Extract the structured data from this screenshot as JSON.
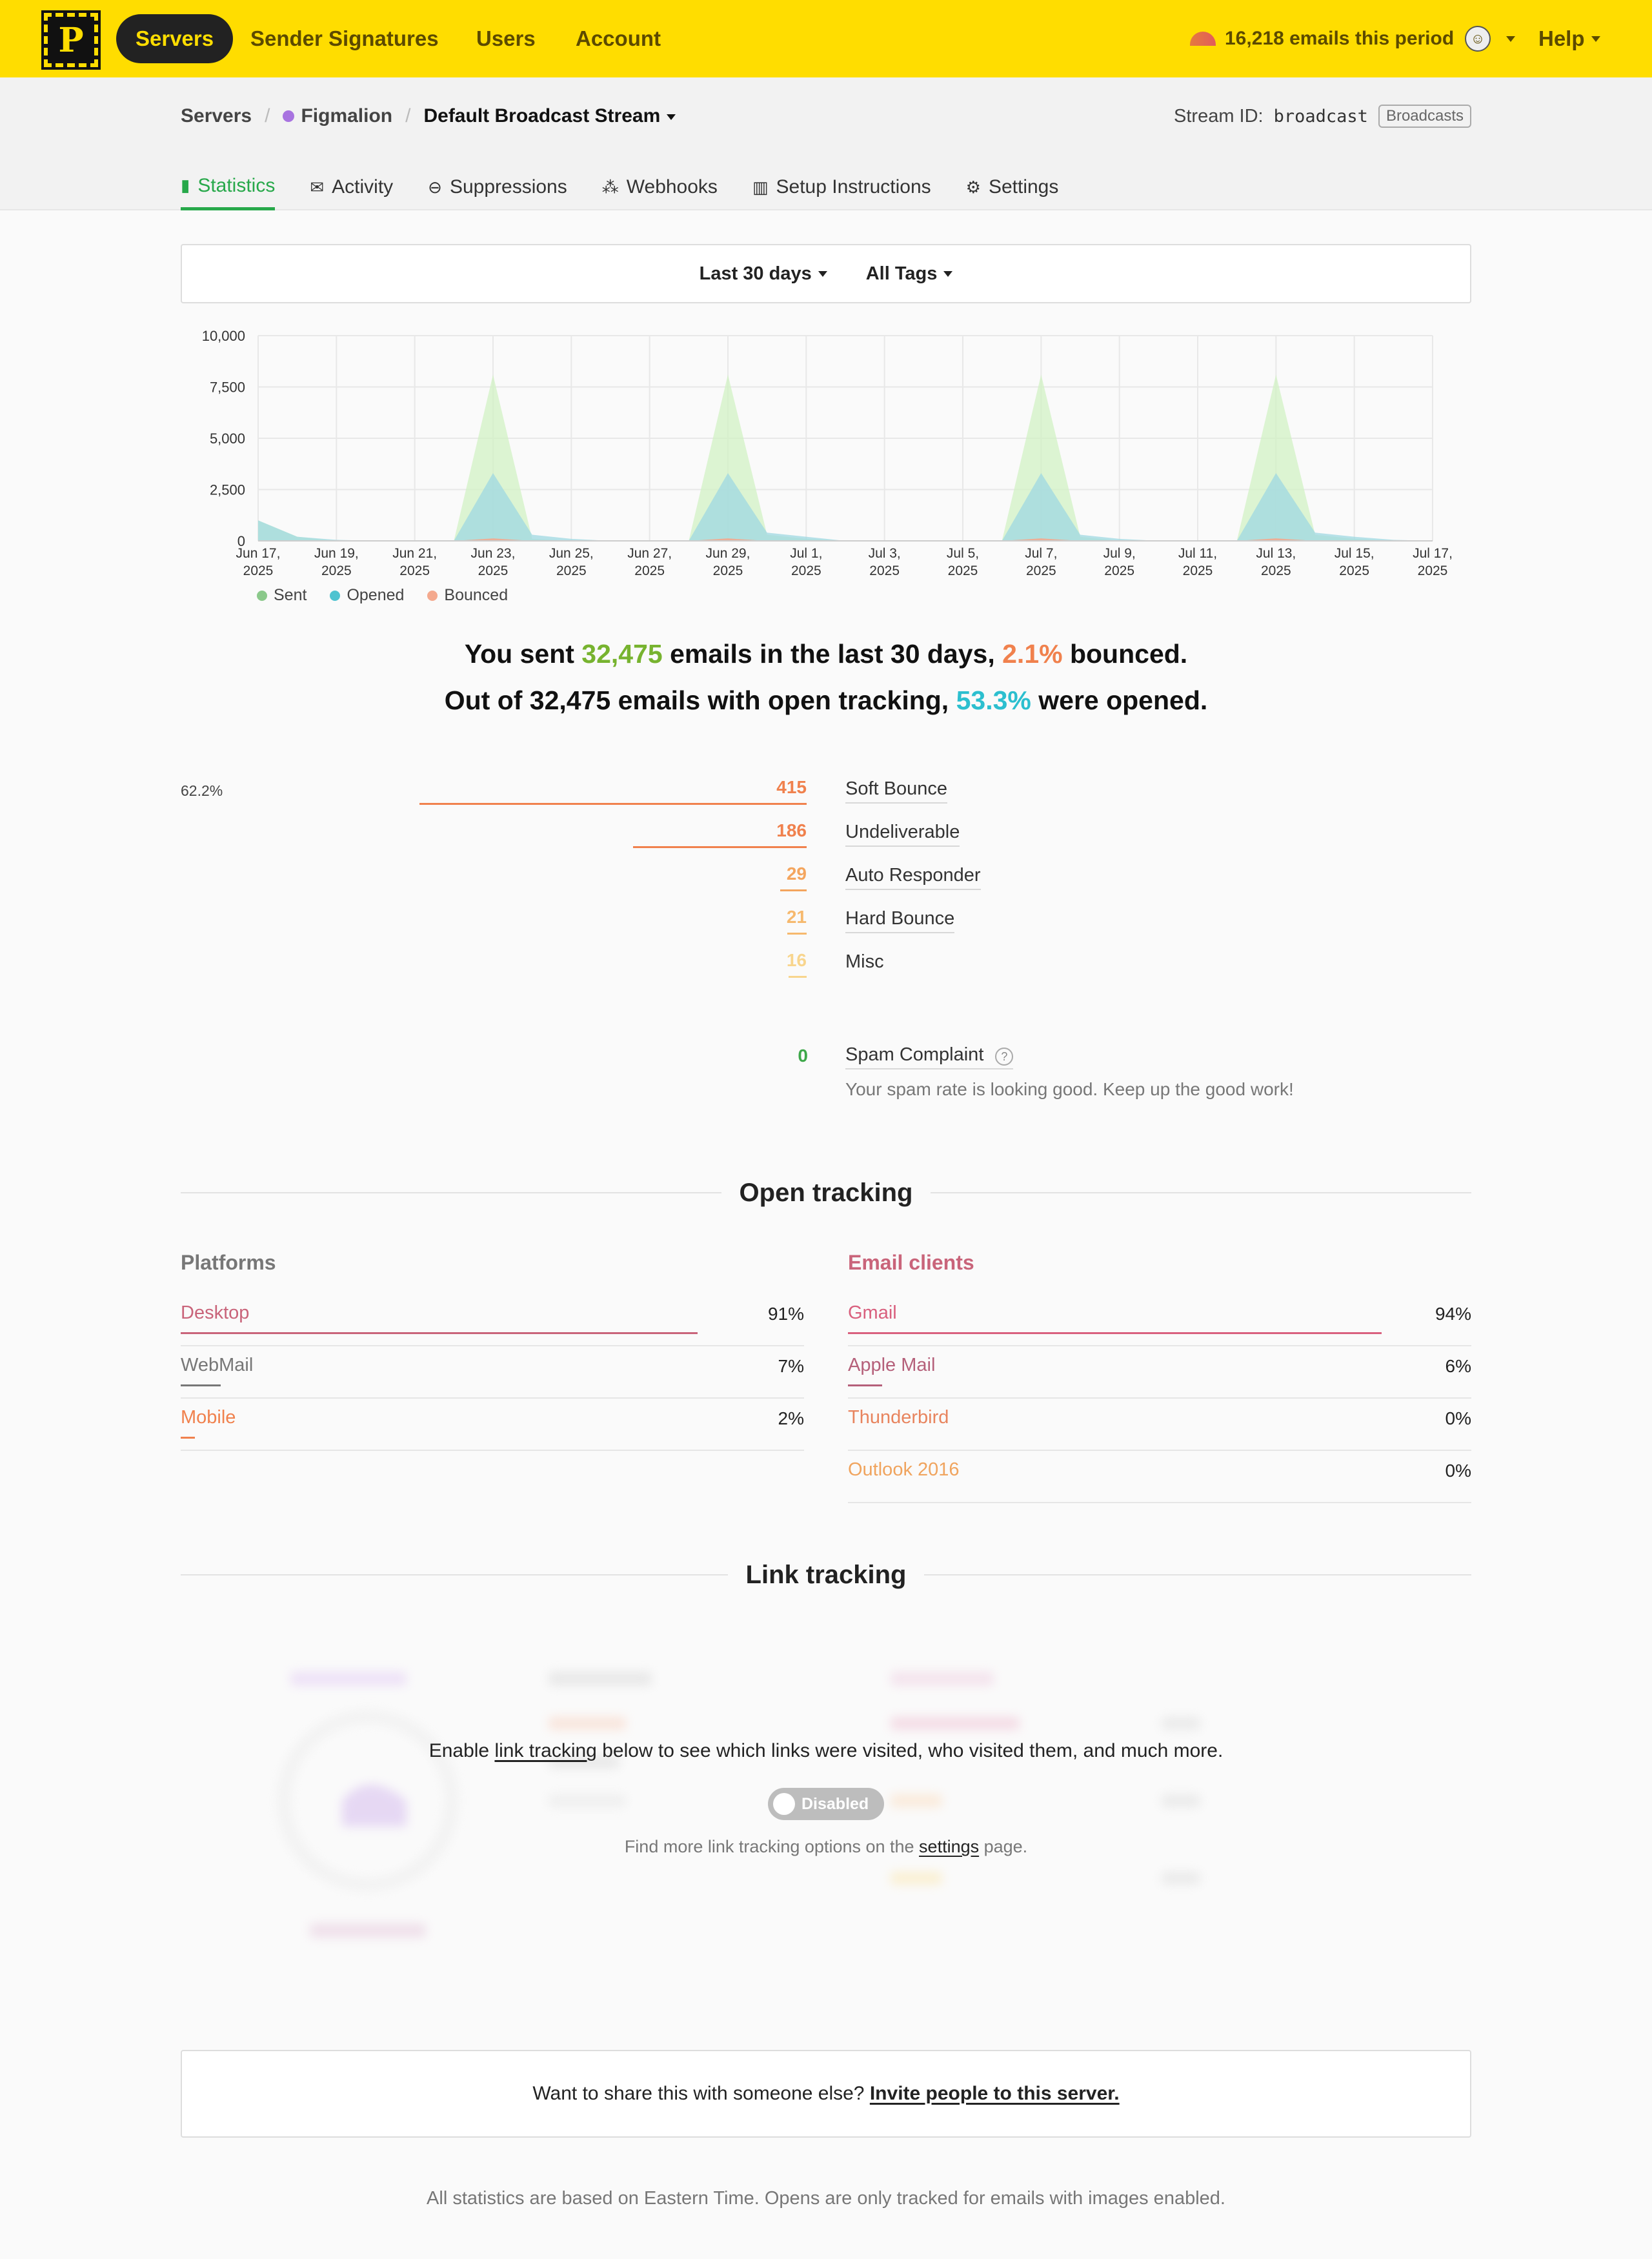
{
  "nav": {
    "logo": "P",
    "servers": "Servers",
    "sender_signatures": "Sender Signatures",
    "users": "Users",
    "account": "Account",
    "usage": "16,218 emails this period",
    "help": "Help"
  },
  "breadcrumb": {
    "servers": "Servers",
    "server": "Figmalion",
    "stream": "Default Broadcast Stream"
  },
  "stream_id": {
    "label": "Stream ID:",
    "value": "broadcast",
    "badge": "Broadcasts"
  },
  "tabs": [
    "Statistics",
    "Activity",
    "Suppressions",
    "Webhooks",
    "Setup Instructions",
    "Settings"
  ],
  "filters": {
    "range": "Last 30 days",
    "tags": "All Tags"
  },
  "colors": {
    "sent": "#d2f2c4",
    "opened": "#9fd8e2",
    "bounced": "#f4a98e",
    "accent": "#ffdd00"
  },
  "chart_data": {
    "type": "area",
    "x": [
      "Jun 17, 2025",
      "Jun 18, 2025",
      "Jun 19, 2025",
      "Jun 20, 2025",
      "Jun 21, 2025",
      "Jun 22, 2025",
      "Jun 23, 2025",
      "Jun 24, 2025",
      "Jun 25, 2025",
      "Jun 26, 2025",
      "Jun 27, 2025",
      "Jun 28, 2025",
      "Jun 29, 2025",
      "Jun 30, 2025",
      "Jul 1, 2025",
      "Jul 2, 2025",
      "Jul 3, 2025",
      "Jul 4, 2025",
      "Jul 5, 2025",
      "Jul 6, 2025",
      "Jul 7, 2025",
      "Jul 8, 2025",
      "Jul 9, 2025",
      "Jul 10, 2025",
      "Jul 11, 2025",
      "Jul 12, 2025",
      "Jul 13, 2025",
      "Jul 14, 2025",
      "Jul 15, 2025",
      "Jul 16, 2025",
      "Jul 17, 2025"
    ],
    "tick_labels": [
      [
        "Jun 17,",
        "2025"
      ],
      [
        "Jun 19,",
        "2025"
      ],
      [
        "Jun 21,",
        "2025"
      ],
      [
        "Jun 23,",
        "2025"
      ],
      [
        "Jun 25,",
        "2025"
      ],
      [
        "Jun 27,",
        "2025"
      ],
      [
        "Jun 29,",
        "2025"
      ],
      [
        "Jul 1,",
        "2025"
      ],
      [
        "Jul 3,",
        "2025"
      ],
      [
        "Jul 5,",
        "2025"
      ],
      [
        "Jul 7,",
        "2025"
      ],
      [
        "Jul 9,",
        "2025"
      ],
      [
        "Jul 11,",
        "2025"
      ],
      [
        "Jul 13,",
        "2025"
      ],
      [
        "Jul 15,",
        "2025"
      ],
      [
        "Jul 17,",
        "2025"
      ]
    ],
    "y_ticks": [
      "0",
      "2,500",
      "5,000",
      "7,500",
      "10,000"
    ],
    "ylim": [
      0,
      10000
    ],
    "grid": true,
    "legend": "bottom-left",
    "series": [
      {
        "name": "Sent",
        "values": [
          1000,
          200,
          0,
          0,
          0,
          0,
          8100,
          100,
          0,
          0,
          0,
          0,
          8100,
          300,
          100,
          0,
          0,
          0,
          0,
          0,
          8100,
          200,
          0,
          0,
          0,
          0,
          8100,
          300,
          100,
          0,
          0
        ]
      },
      {
        "name": "Opened",
        "values": [
          1000,
          200,
          50,
          0,
          0,
          0,
          3300,
          300,
          100,
          0,
          0,
          0,
          3300,
          400,
          200,
          0,
          0,
          0,
          0,
          0,
          3300,
          300,
          100,
          0,
          0,
          0,
          3300,
          400,
          200,
          50,
          0
        ]
      },
      {
        "name": "Bounced",
        "values": [
          0,
          0,
          0,
          0,
          0,
          0,
          120,
          0,
          0,
          0,
          0,
          0,
          120,
          0,
          0,
          0,
          0,
          0,
          0,
          0,
          120,
          0,
          0,
          0,
          0,
          0,
          120,
          0,
          0,
          0,
          0
        ]
      }
    ]
  },
  "summary": {
    "line1_a": "You sent ",
    "sent": "32,475",
    "line1_b": " emails in the last 30 days, ",
    "bounce_rate": "2.1%",
    "line1_c": " bounced.",
    "line2_a": "Out of 32,475 emails with open tracking, ",
    "open_rate": "53.3%",
    "line2_b": " were opened."
  },
  "bounces": {
    "top_percent": "62.2%",
    "items": [
      {
        "count": "415",
        "label": "Soft Bounce",
        "fraction": 0.622,
        "color": "#f0814d"
      },
      {
        "count": "186",
        "label": "Undeliverable",
        "fraction": 0.279,
        "color": "#f0814d"
      },
      {
        "count": "29",
        "label": "Auto Responder",
        "fraction": 0.043,
        "color": "#f4a55e"
      },
      {
        "count": "21",
        "label": "Hard Bounce",
        "fraction": 0.031,
        "color": "#f6b96e"
      },
      {
        "count": "16",
        "label": "Misc",
        "fraction": 0.024,
        "color": "#f8d58d"
      }
    ],
    "spam": {
      "count": "0",
      "label": "Spam Complaint",
      "note": "Your spam rate is looking good. Keep up the good work!"
    }
  },
  "open_tracking": {
    "title": "Open tracking",
    "platforms": {
      "title": "Platforms",
      "rows": [
        {
          "name": "Desktop",
          "percent": "91%",
          "fraction": 0.91,
          "color": "#c9647a"
        },
        {
          "name": "WebMail",
          "percent": "7%",
          "fraction": 0.07,
          "color": "#777777"
        },
        {
          "name": "Mobile",
          "percent": "2%",
          "fraction": 0.02,
          "color": "#f0814d"
        }
      ]
    },
    "clients": {
      "title": "Email clients",
      "rows": [
        {
          "name": "Gmail",
          "percent": "94%",
          "fraction": 0.94,
          "color": "#d9607e"
        },
        {
          "name": "Apple Mail",
          "percent": "6%",
          "fraction": 0.06,
          "color": "#b5607a"
        },
        {
          "name": "Thunderbird",
          "percent": "0%",
          "fraction": 0,
          "color": "#e8845e"
        },
        {
          "name": "Outlook 2016",
          "percent": "0%",
          "fraction": 0,
          "color": "#f0a45e"
        }
      ]
    }
  },
  "link_tracking": {
    "title": "Link tracking",
    "enable_a": "Enable ",
    "enable_link": "link tracking",
    "enable_b": " below to see which links were visited, who visited them, and much more.",
    "toggle": "Disabled",
    "more_a": "Find more link tracking options on the ",
    "more_link": "settings",
    "more_b": " page."
  },
  "share": {
    "text": "Want to share this with someone else? ",
    "link": "Invite people to this server."
  },
  "footer": "All statistics are based on Eastern Time. Opens are only tracked for emails with images enabled."
}
